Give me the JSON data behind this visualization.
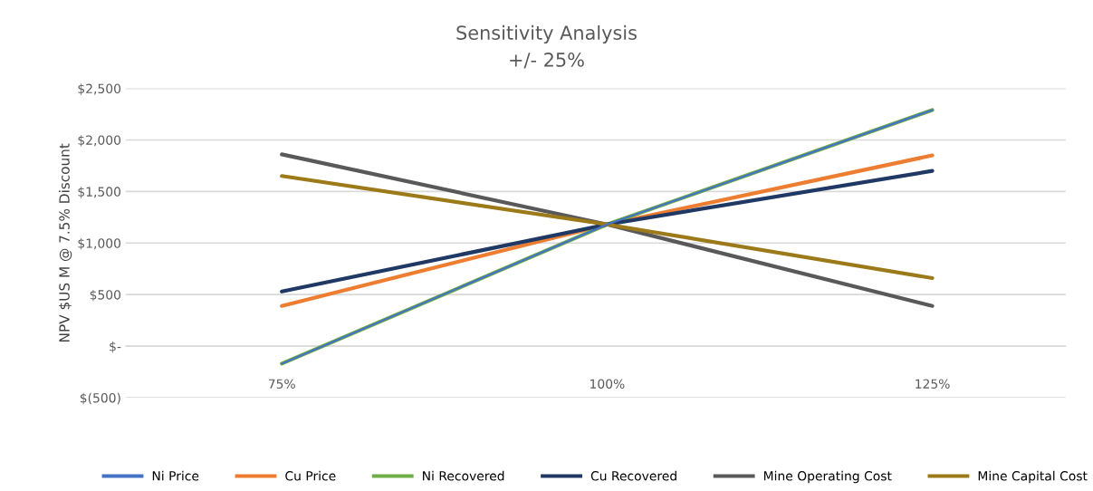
{
  "chart_data": {
    "type": "line",
    "title": "Sensitivity Analysis",
    "subtitle": "+/- 25%",
    "ylabel": "NPV $US M @ 7.5% Discount",
    "categories": [
      "75%",
      "100%",
      "125%"
    ],
    "series": [
      {
        "name": "Ni Price",
        "color": "#4472c4",
        "values": [
          -170,
          1180,
          2290
        ]
      },
      {
        "name": "Cu Price",
        "color": "#ed7d31",
        "values": [
          390,
          1180,
          1850
        ]
      },
      {
        "name": "Ni Recovered",
        "color": "#70ad47",
        "values": [
          -170,
          1180,
          2290
        ]
      },
      {
        "name": "Cu Recovered",
        "color": "#1f3864",
        "values": [
          530,
          1180,
          1700
        ]
      },
      {
        "name": "Mine Operating Cost",
        "color": "#595959",
        "values": [
          1860,
          1180,
          390
        ]
      },
      {
        "name": "Mine Capital Cost",
        "color": "#9c7a1a",
        "values": [
          1650,
          1180,
          660
        ]
      }
    ],
    "ylim": [
      -500,
      2500
    ],
    "yticks": [
      {
        "value": -500,
        "label": "$(500)"
      },
      {
        "value": 0,
        "label": "$-"
      },
      {
        "value": 500,
        "label": "$500"
      },
      {
        "value": 1000,
        "label": "$1,000"
      },
      {
        "value": 1500,
        "label": "$1,500"
      },
      {
        "value": 2000,
        "label": "$2,000"
      },
      {
        "value": 2500,
        "label": "$2,500"
      }
    ],
    "grid": "y",
    "legend": "bottom",
    "marker": "none",
    "line_style": "solid"
  }
}
